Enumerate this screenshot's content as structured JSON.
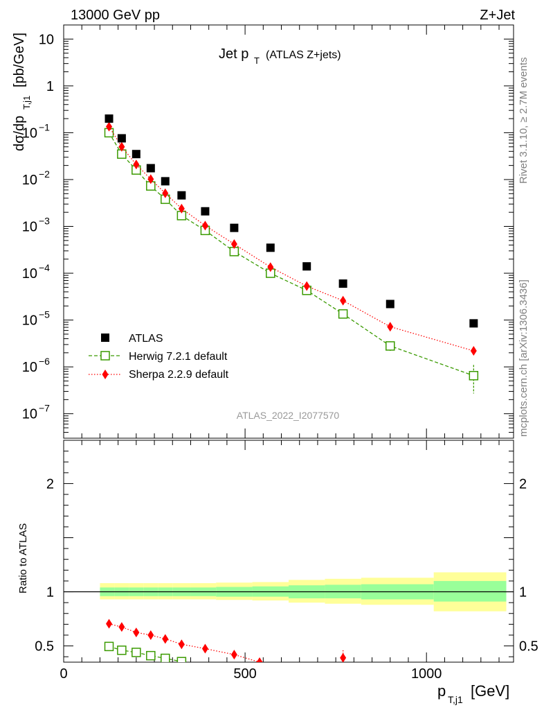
{
  "header": {
    "energy_label": "13000 GeV pp",
    "process_label": "Z+Jet"
  },
  "side_labels": {
    "rivet": "Rivet 3.1.10, ≥ 2.7M events",
    "mcplots": "mcplots.cern.ch [arXiv:1306.3436]"
  },
  "colors": {
    "atlas": "#000000",
    "herwig": "#3a9a00",
    "sherpa": "#ff0000",
    "band_outer": "#ffff99",
    "band_inner": "#99ff99"
  },
  "chart_data": [
    {
      "type": "scatter",
      "panel": "main",
      "title_main": "Jet p",
      "title_sub": "T",
      "title_extra": "(ATLAS Z+jets)",
      "analysis_id": "ATLAS_2022_I2077570",
      "ylabel": "dσ/dp",
      "ylabel_sub": "T,j1",
      "ylabel_unit": "[pb/GeV]",
      "yscale": "log",
      "ylim": [
        3e-08,
        20
      ],
      "xlim": [
        0,
        1240
      ],
      "y_ticks": [
        {
          "value": 10,
          "label": "10"
        },
        {
          "value": 1,
          "label": "1"
        },
        {
          "value": 0.1,
          "base": "10",
          "exp": "−1"
        },
        {
          "value": 0.01,
          "base": "10",
          "exp": "−2"
        },
        {
          "value": 0.001,
          "base": "10",
          "exp": "−3"
        },
        {
          "value": 0.0001,
          "base": "10",
          "exp": "−4"
        },
        {
          "value": 1e-05,
          "base": "10",
          "exp": "−5"
        },
        {
          "value": 1e-06,
          "base": "10",
          "exp": "−6"
        },
        {
          "value": 1e-07,
          "base": "10",
          "exp": "−7"
        }
      ],
      "legend_position": "bottom-left",
      "series": [
        {
          "name": "ATLAS",
          "style": "square",
          "x": [
            125,
            160,
            200,
            240,
            280,
            325,
            390,
            470,
            570,
            670,
            770,
            900,
            1130
          ],
          "y": [
            0.2,
            0.076,
            0.035,
            0.0175,
            0.0092,
            0.0046,
            0.0021,
            0.00093,
            0.00035,
            0.00014,
            6e-05,
            2.2e-05,
            8.5e-06
          ]
        },
        {
          "name": "Herwig 7.2.1 default",
          "style": "open-square-dashed",
          "x": [
            125,
            160,
            200,
            240,
            280,
            325,
            390,
            470,
            570,
            670,
            770,
            900,
            1130
          ],
          "y": [
            0.1,
            0.035,
            0.016,
            0.0073,
            0.0038,
            0.0017,
            0.00082,
            0.00029,
            0.0001,
            4.3e-05,
            1.35e-05,
            2.8e-06,
            6.5e-07
          ]
        },
        {
          "name": "Sherpa 2.2.9 default",
          "style": "diamond-dotted",
          "x": [
            125,
            160,
            200,
            240,
            280,
            325,
            390,
            470,
            570,
            670,
            770,
            900,
            1130
          ],
          "y": [
            0.135,
            0.05,
            0.021,
            0.0102,
            0.0051,
            0.0024,
            0.00104,
            0.00042,
            0.000135,
            5.3e-05,
            2.6e-05,
            7.2e-06,
            2.2e-06
          ]
        }
      ]
    },
    {
      "type": "scatter",
      "panel": "ratio",
      "ylabel": "Ratio to ATLAS",
      "xlabel_main": "p",
      "xlabel_sub": "T,j1",
      "xlabel_unit": "[GeV]",
      "xlim": [
        0,
        1240
      ],
      "ylim": [
        0.35,
        2.4
      ],
      "x_ticks": [
        0,
        500,
        1000
      ],
      "y_ticks": [
        0.5,
        1,
        2
      ],
      "bands": [
        {
          "x0": 100,
          "x1": 140,
          "inner": [
            0.96,
            1.04
          ],
          "outer": [
            0.93,
            1.08
          ]
        },
        {
          "x0": 140,
          "x1": 180,
          "inner": [
            0.96,
            1.04
          ],
          "outer": [
            0.93,
            1.08
          ]
        },
        {
          "x0": 180,
          "x1": 220,
          "inner": [
            0.96,
            1.04
          ],
          "outer": [
            0.93,
            1.08
          ]
        },
        {
          "x0": 220,
          "x1": 260,
          "inner": [
            0.96,
            1.04
          ],
          "outer": [
            0.93,
            1.08
          ]
        },
        {
          "x0": 260,
          "x1": 300,
          "inner": [
            0.96,
            1.04
          ],
          "outer": [
            0.93,
            1.08
          ]
        },
        {
          "x0": 300,
          "x1": 350,
          "inner": [
            0.96,
            1.04
          ],
          "outer": [
            0.93,
            1.08
          ]
        },
        {
          "x0": 350,
          "x1": 420,
          "inner": [
            0.96,
            1.04
          ],
          "outer": [
            0.93,
            1.08
          ]
        },
        {
          "x0": 420,
          "x1": 520,
          "inner": [
            0.955,
            1.045
          ],
          "outer": [
            0.925,
            1.085
          ]
        },
        {
          "x0": 520,
          "x1": 620,
          "inner": [
            0.955,
            1.05
          ],
          "outer": [
            0.92,
            1.09
          ]
        },
        {
          "x0": 620,
          "x1": 720,
          "inner": [
            0.94,
            1.06
          ],
          "outer": [
            0.9,
            1.11
          ]
        },
        {
          "x0": 720,
          "x1": 820,
          "inner": [
            0.94,
            1.065
          ],
          "outer": [
            0.89,
            1.12
          ]
        },
        {
          "x0": 820,
          "x1": 1020,
          "inner": [
            0.93,
            1.07
          ],
          "outer": [
            0.88,
            1.13
          ]
        },
        {
          "x0": 1020,
          "x1": 1220,
          "inner": [
            0.91,
            1.1
          ],
          "outer": [
            0.82,
            1.18
          ]
        }
      ],
      "series": [
        {
          "name": "Herwig 7.2.1 default",
          "style": "open-square-dashed",
          "x": [
            125,
            160,
            200,
            240,
            280,
            325
          ],
          "y": [
            0.495,
            0.46,
            0.44,
            0.41,
            0.385,
            0.355
          ]
        },
        {
          "name": "Sherpa 2.2.9 default",
          "style": "diamond-dotted",
          "x": [
            125,
            160,
            200,
            240,
            280,
            325,
            390,
            470,
            540
          ],
          "y": [
            0.705,
            0.675,
            0.625,
            0.6,
            0.565,
            0.515,
            0.475,
            0.42,
            0.35
          ]
        },
        {
          "name": "Sherpa 2.2.9 default",
          "style": "diamond-dotted-point",
          "x": [
            770
          ],
          "y": [
            0.39
          ],
          "err": [
            0.07
          ]
        }
      ]
    }
  ]
}
